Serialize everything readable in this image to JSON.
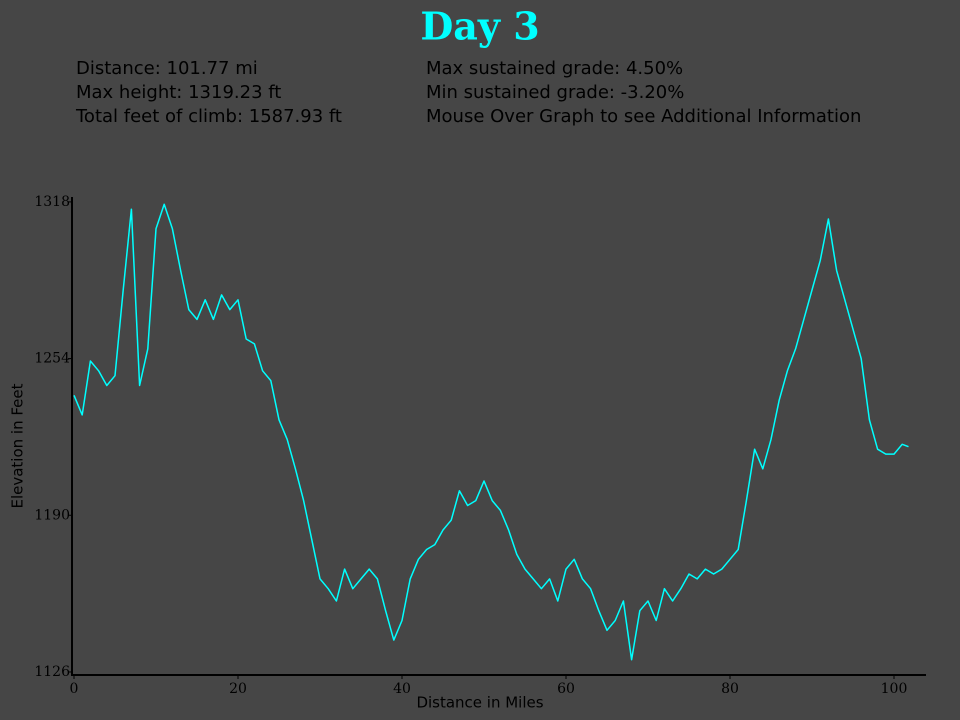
{
  "chart_data": {
    "type": "line",
    "title": "Day 3",
    "annotations": [
      "Distance: 101.77 mi",
      "Max height: 1319.23 ft",
      "Total feet of climb: 1587.93 ft",
      "Max sustained grade: 4.50%",
      "Min sustained grade: -3.20%",
      "Mouse Over Graph to see Additional Information"
    ],
    "xlabel": "Distance in Miles",
    "ylabel": "Elevation in Feet",
    "x": [
      0,
      1,
      2,
      3,
      4,
      5,
      6,
      7,
      8,
      9,
      10,
      11,
      12,
      13,
      14,
      15,
      16,
      17,
      18,
      19,
      20,
      21,
      22,
      23,
      24,
      25,
      26,
      27,
      28,
      29,
      30,
      31,
      32,
      33,
      34,
      35,
      36,
      37,
      38,
      39,
      40,
      41,
      42,
      43,
      44,
      45,
      46,
      47,
      48,
      49,
      50,
      51,
      52,
      53,
      54,
      55,
      56,
      57,
      58,
      59,
      60,
      61,
      62,
      63,
      64,
      65,
      66,
      67,
      68,
      69,
      70,
      71,
      72,
      73,
      74,
      75,
      76,
      77,
      78,
      79,
      80,
      81,
      82,
      83,
      84,
      85,
      86,
      87,
      88,
      89,
      90,
      91,
      92,
      93,
      94,
      95,
      96,
      97,
      98,
      99,
      100,
      101,
      101.77
    ],
    "values": [
      1239,
      1231,
      1253,
      1249,
      1243,
      1247,
      1282,
      1315,
      1243,
      1258,
      1307,
      1317,
      1307,
      1290,
      1274,
      1270,
      1278,
      1270,
      1280,
      1274,
      1278,
      1262,
      1260,
      1249,
      1245,
      1229,
      1221,
      1209,
      1196,
      1180,
      1164,
      1160,
      1155,
      1168,
      1160,
      1164,
      1168,
      1164,
      1151,
      1139,
      1147,
      1164,
      1172,
      1176,
      1178,
      1184,
      1188,
      1200,
      1194,
      1196,
      1204,
      1196,
      1192,
      1184,
      1174,
      1168,
      1164,
      1160,
      1164,
      1155,
      1168,
      1172,
      1164,
      1160,
      1151,
      1143,
      1147,
      1155,
      1131,
      1151,
      1155,
      1147,
      1160,
      1155,
      1160,
      1166,
      1164,
      1168,
      1166,
      1168,
      1172,
      1176,
      1196,
      1217,
      1209,
      1221,
      1237,
      1249,
      1258,
      1270,
      1282,
      1294,
      1311,
      1290,
      1278,
      1266,
      1254,
      1229,
      1217,
      1215,
      1215,
      1219,
      1218
    ],
    "color": "#00ffff",
    "xlim": [
      0,
      104
    ],
    "ylim": [
      1125,
      1320
    ],
    "xticks": [
      0,
      20,
      40,
      60,
      80,
      100
    ],
    "yticks": [
      1126,
      1190,
      1254,
      1318
    ]
  }
}
